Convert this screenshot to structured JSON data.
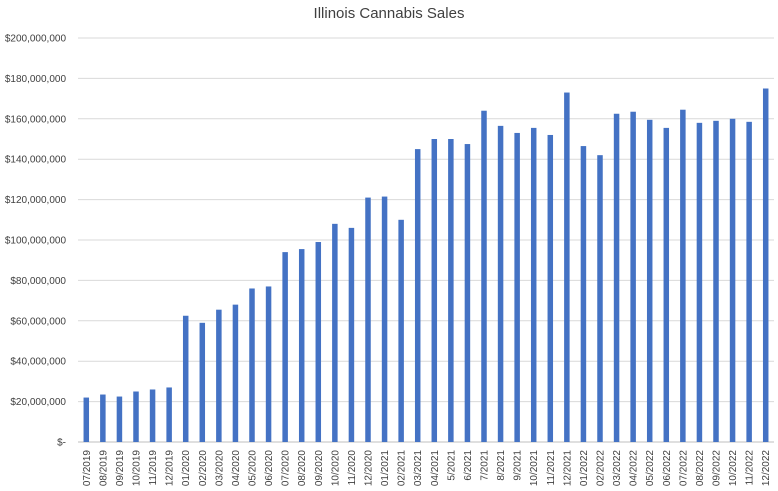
{
  "chart_data": {
    "type": "bar",
    "title": "Illinois Cannabis Sales",
    "xlabel": "",
    "ylabel": "",
    "ylim": [
      0,
      200000000
    ],
    "yticks": [
      {
        "value": 0,
        "label": "$-"
      },
      {
        "value": 20000000,
        "label": "$20,000,000"
      },
      {
        "value": 40000000,
        "label": "$40,000,000"
      },
      {
        "value": 60000000,
        "label": "$60,000,000"
      },
      {
        "value": 80000000,
        "label": "$80,000,000"
      },
      {
        "value": 100000000,
        "label": "$100,000,000"
      },
      {
        "value": 120000000,
        "label": "$120,000,000"
      },
      {
        "value": 140000000,
        "label": "$140,000,000"
      },
      {
        "value": 160000000,
        "label": "$160,000,000"
      },
      {
        "value": 180000000,
        "label": "$180,000,000"
      },
      {
        "value": 200000000,
        "label": "$200,000,000"
      }
    ],
    "grid": true,
    "legend": "none",
    "bar_color": "#4472C4",
    "categories": [
      "07/2019",
      "08/2019",
      "09/2019",
      "10/2019",
      "11/2019",
      "12/2019",
      "01/2020",
      "02/2020",
      "03/2020",
      "04/2020",
      "05/2020",
      "06/2020",
      "07/2020",
      "08/2020",
      "09/2020",
      "10/2020",
      "11/2020",
      "12/2020",
      "01/2021",
      "02/2021",
      "03/2021",
      "04/2021",
      "5/2021",
      "6/2021",
      "7/2021",
      "8/2021",
      "9/2021",
      "10/2021",
      "11/2021",
      "12/2021",
      "01/2022",
      "02/2022",
      "03/2022",
      "04/2022",
      "05/2022",
      "06/2022",
      "07/2022",
      "08/2022",
      "09/2022",
      "10/2022",
      "11/2022",
      "12/2022"
    ],
    "values": [
      22000000,
      23500000,
      22500000,
      25000000,
      26000000,
      27000000,
      62500000,
      59000000,
      65500000,
      68000000,
      76000000,
      77000000,
      94000000,
      95500000,
      99000000,
      108000000,
      106000000,
      121000000,
      121500000,
      110000000,
      145000000,
      150000000,
      150000000,
      147500000,
      164000000,
      156500000,
      153000000,
      155500000,
      152000000,
      173000000,
      146500000,
      142000000,
      162500000,
      163500000,
      159500000,
      155500000,
      164500000,
      158000000,
      159000000,
      160000000,
      158500000,
      175000000
    ]
  }
}
